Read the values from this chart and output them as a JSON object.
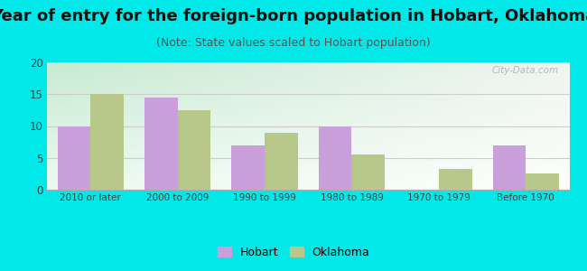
{
  "title": "Year of entry for the foreign-born population in Hobart, Oklahoma",
  "subtitle": "(Note: State values scaled to Hobart population)",
  "categories": [
    "2010 or later",
    "2000 to 2009",
    "1990 to 1999",
    "1980 to 1989",
    "1970 to 1979",
    "Before 1970"
  ],
  "hobart_values": [
    10.0,
    14.5,
    7.0,
    10.0,
    0.0,
    7.0
  ],
  "oklahoma_values": [
    15.0,
    12.5,
    9.0,
    5.5,
    3.2,
    2.5
  ],
  "hobart_color": "#c9a0dc",
  "oklahoma_color": "#b8c88a",
  "ylim": [
    0,
    20
  ],
  "yticks": [
    0,
    5,
    10,
    15,
    20
  ],
  "background_color": "#00e8e8",
  "title_fontsize": 13,
  "subtitle_fontsize": 9,
  "legend_hobart": "Hobart",
  "legend_oklahoma": "Oklahoma",
  "watermark": "City-Data.com"
}
